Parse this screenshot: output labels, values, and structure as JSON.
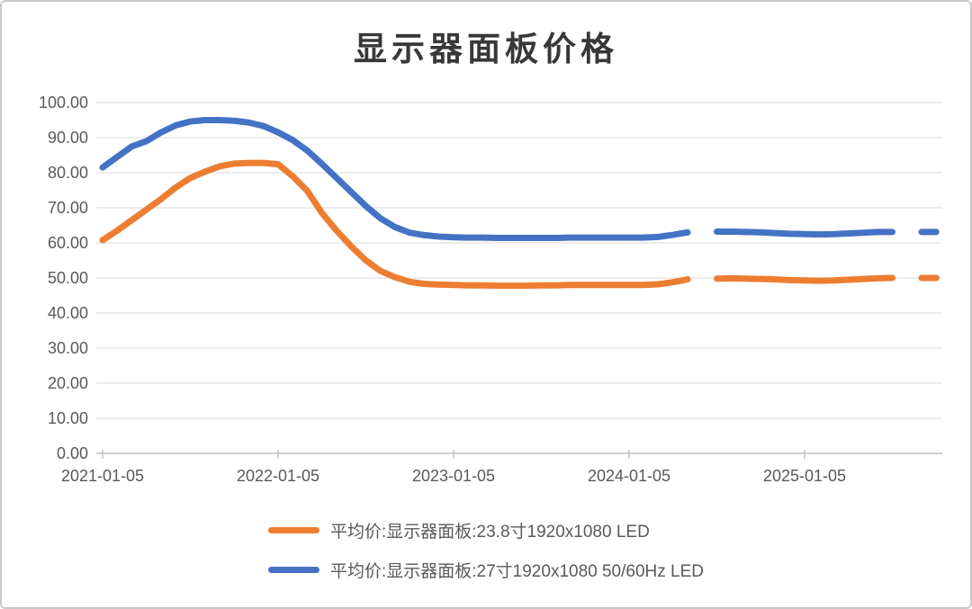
{
  "title": "显示器面板价格",
  "chart_data": {
    "type": "line",
    "title": "显示器面板价格",
    "xlabel": "",
    "ylabel": "",
    "ylim": [
      0,
      100
    ],
    "grid": "horizontal",
    "legend_position": "bottom",
    "y_ticks": [
      {
        "label": "100.00",
        "value": 100
      },
      {
        "label": "90.00",
        "value": 90
      },
      {
        "label": "80.00",
        "value": 80
      },
      {
        "label": "70.00",
        "value": 70
      },
      {
        "label": "60.00",
        "value": 60
      },
      {
        "label": "50.00",
        "value": 50
      },
      {
        "label": "40.00",
        "value": 40
      },
      {
        "label": "30.00",
        "value": 30
      },
      {
        "label": "20.00",
        "value": 20
      },
      {
        "label": "10.00",
        "value": 10
      },
      {
        "label": "0.00",
        "value": 0
      }
    ],
    "x_tick_labels": [
      "2021-01-05",
      "2022-01-05",
      "2023-01-05",
      "2024-01-05",
      "2025-01-05"
    ],
    "x_tick_month_indices": [
      0,
      12,
      24,
      36,
      48
    ],
    "x": [
      "2021-01",
      "2021-02",
      "2021-03",
      "2021-04",
      "2021-05",
      "2021-06",
      "2021-07",
      "2021-08",
      "2021-09",
      "2021-10",
      "2021-11",
      "2021-12",
      "2022-01",
      "2022-02",
      "2022-03",
      "2022-04",
      "2022-05",
      "2022-06",
      "2022-07",
      "2022-08",
      "2022-09",
      "2022-10",
      "2022-11",
      "2022-12",
      "2023-01",
      "2023-02",
      "2023-03",
      "2023-04",
      "2023-05",
      "2023-06",
      "2023-07",
      "2023-08",
      "2023-09",
      "2023-10",
      "2023-11",
      "2023-12",
      "2024-01",
      "2024-02",
      "2024-03",
      "2024-04",
      "2024-05",
      "2024-06",
      "2024-07",
      "2024-08",
      "2024-09",
      "2024-10",
      "2024-11",
      "2024-12",
      "2025-01",
      "2025-02",
      "2025-03",
      "2025-04",
      "2025-05",
      "2025-06",
      "2025-07",
      "2025-08",
      "2025-09",
      "2025-10"
    ],
    "series": [
      {
        "key": "panel-23-8",
        "name": "平均价:显示器面板:23.8寸1920x1080 LED",
        "color": "#ED7D31",
        "values": [
          60.8,
          63.5,
          66.5,
          69.5,
          72.5,
          75.8,
          78.5,
          80.3,
          81.8,
          82.6,
          82.8,
          82.8,
          82.4,
          79.0,
          74.8,
          68.5,
          63.5,
          59.0,
          55.0,
          52.0,
          50.2,
          48.9,
          48.3,
          48.1,
          48.0,
          47.9,
          47.9,
          47.8,
          47.8,
          47.8,
          47.9,
          47.9,
          48.0,
          48.0,
          48.0,
          48.0,
          48.0,
          48.0,
          48.2,
          48.8,
          49.6,
          null,
          49.8,
          49.9,
          49.8,
          49.7,
          49.6,
          49.4,
          49.3,
          49.2,
          49.3,
          49.5,
          49.7,
          49.9,
          50.0,
          null,
          50.0,
          50.0
        ]
      },
      {
        "key": "panel-27",
        "name": "平均价:显示器面板:27寸1920x1080 50/60Hz LED",
        "color": "#4472C4",
        "values": [
          81.5,
          84.5,
          87.5,
          89.0,
          91.5,
          93.5,
          94.6,
          95.0,
          95.0,
          94.8,
          94.3,
          93.3,
          91.5,
          89.3,
          86.3,
          82.5,
          78.5,
          74.5,
          70.5,
          67.0,
          64.5,
          62.9,
          62.2,
          61.8,
          61.6,
          61.5,
          61.5,
          61.4,
          61.4,
          61.4,
          61.4,
          61.4,
          61.5,
          61.5,
          61.5,
          61.5,
          61.5,
          61.5,
          61.7,
          62.3,
          63.0,
          null,
          63.2,
          63.2,
          63.1,
          63.0,
          62.8,
          62.6,
          62.5,
          62.4,
          62.5,
          62.7,
          62.9,
          63.1,
          63.1,
          null,
          63.1,
          63.1
        ]
      }
    ]
  },
  "legend": {
    "items": [
      {
        "label": "平均价:显示器面板:23.8寸1920x1080 LED",
        "color": "#ED7D31"
      },
      {
        "label": "平均价:显示器面板:27寸1920x1080 50/60Hz LED",
        "color": "#4472C4"
      }
    ]
  },
  "colors": {
    "series_orange": "#ED7D31",
    "series_blue": "#4472C4",
    "gridline": "#D9D9D9",
    "axis_line": "#BFBFBF",
    "tick_label": "#595959",
    "title_text": "#383838",
    "frame_border": "#C9C9C9"
  }
}
